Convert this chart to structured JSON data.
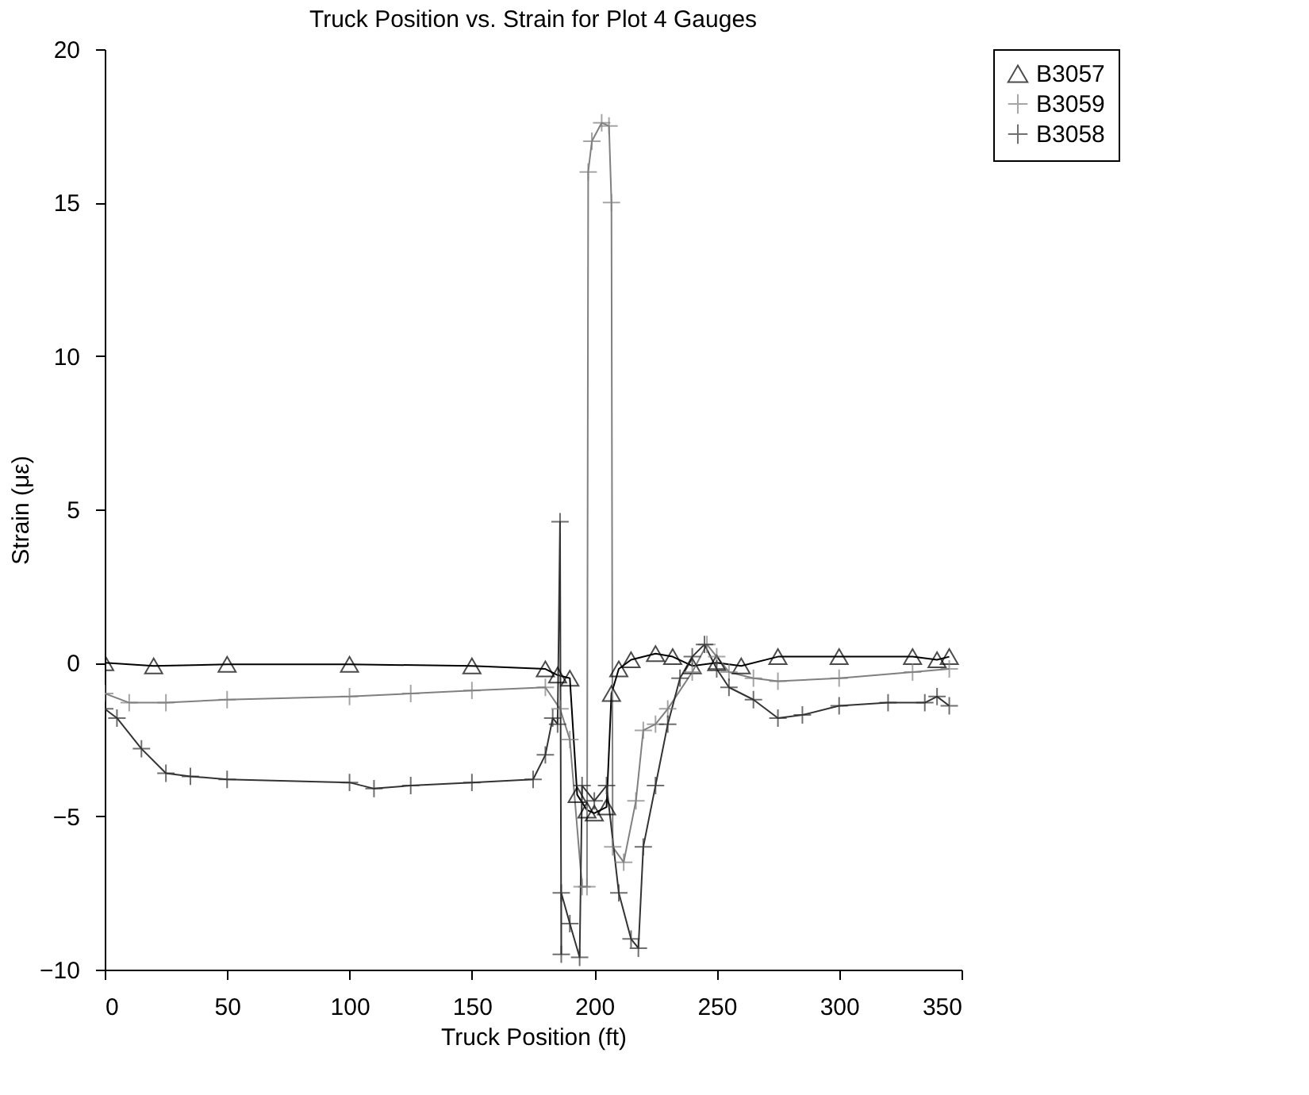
{
  "chart_data": {
    "type": "line",
    "title": "Truck Position vs. Strain for Plot 4 Gauges",
    "xlabel": "Truck Position (ft)",
    "ylabel": "Strain (με)",
    "xlim": [
      0,
      350
    ],
    "xticks": [
      0,
      50,
      100,
      150,
      200,
      250,
      300,
      350
    ],
    "ylim": [
      -10,
      20
    ],
    "yticks": [
      -10,
      -5,
      0,
      5,
      10,
      15,
      20
    ],
    "grid": false,
    "legend": "right",
    "series": [
      {
        "name": "B3057",
        "color": "#000000",
        "marker": "triangle",
        "x": [
          0,
          20,
          50,
          100,
          150,
          180,
          185,
          190,
          193,
          197,
          200,
          205,
          207,
          210,
          215,
          225,
          232,
          240,
          250,
          260,
          275,
          300,
          330,
          340,
          345
        ],
        "values": [
          0,
          -0.1,
          -0.05,
          -0.05,
          -0.1,
          -0.2,
          -0.4,
          -0.5,
          -4.3,
          -4.8,
          -4.9,
          -4.7,
          -1.0,
          -0.2,
          0.1,
          0.3,
          0.2,
          -0.1,
          0,
          -0.1,
          0.2,
          0.2,
          0.2,
          0.1,
          0.2
        ]
      },
      {
        "name": "B3059",
        "color": "#808080",
        "marker": "cross",
        "x": [
          0,
          10,
          25,
          50,
          100,
          125,
          150,
          180,
          186,
          190,
          195,
          197,
          197.5,
          199,
          203,
          206,
          207,
          207.5,
          212,
          217,
          220,
          225,
          230,
          240,
          246,
          250,
          255,
          265,
          275,
          300,
          330,
          345
        ],
        "values": [
          -1.0,
          -1.3,
          -1.3,
          -1.2,
          -1.1,
          -1.0,
          -0.9,
          -0.8,
          -1.5,
          -2.5,
          -7.3,
          -7.3,
          16.0,
          17.0,
          17.6,
          17.5,
          15.0,
          -6.0,
          -6.5,
          -4.5,
          -2.2,
          -2.0,
          -1.5,
          -0.3,
          0.6,
          0.2,
          -0.3,
          -0.5,
          -0.6,
          -0.5,
          -0.3,
          -0.2
        ]
      },
      {
        "name": "B3058",
        "color": "#333333",
        "marker": "cross",
        "x": [
          0,
          5,
          15,
          25,
          35,
          50,
          100,
          110,
          125,
          150,
          175,
          180,
          183,
          185,
          186,
          186.5,
          186.5,
          190,
          194,
          195,
          200,
          205,
          210,
          215,
          218,
          220,
          225,
          230,
          235,
          240,
          245,
          250,
          255,
          265,
          275,
          285,
          300,
          320,
          335,
          340,
          345
        ],
        "values": [
          -1.5,
          -1.8,
          -2.8,
          -3.6,
          -3.7,
          -3.8,
          -3.9,
          -4.1,
          -4.0,
          -3.9,
          -3.8,
          -3.0,
          -1.8,
          -2.0,
          4.6,
          -9.5,
          -7.5,
          -8.5,
          -9.6,
          -4.0,
          -4.5,
          -4.0,
          -7.5,
          -9.0,
          -9.3,
          -6.0,
          -4.0,
          -2.0,
          -0.5,
          0.2,
          0.6,
          -0.2,
          -0.8,
          -1.2,
          -1.8,
          -1.7,
          -1.4,
          -1.3,
          -1.3,
          -1.1,
          -1.4
        ]
      }
    ]
  }
}
